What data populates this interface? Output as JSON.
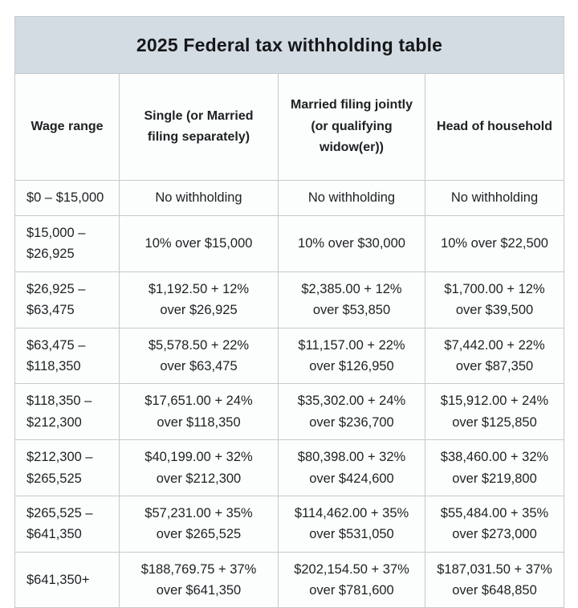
{
  "title": "2025 Federal tax withholding table",
  "colors": {
    "title_band": "#d4dce3",
    "cell_background": "#fcfdfd",
    "border": "#c3cacf",
    "text": "#1e2023"
  },
  "table": {
    "headers": [
      [
        "Wage range"
      ],
      [
        "Single (or Married",
        "filing separately)"
      ],
      [
        "Married filing jointly",
        "(or qualifying",
        "widow(er))"
      ],
      [
        "Head of household"
      ]
    ],
    "rows": [
      [
        [
          "$0 – $15,000"
        ],
        [
          "No withholding"
        ],
        [
          "No withholding"
        ],
        [
          "No withholding"
        ]
      ],
      [
        [
          "$15,000 –",
          "$26,925"
        ],
        [
          "10% over $15,000"
        ],
        [
          "10% over $30,000"
        ],
        [
          "10% over $22,500"
        ]
      ],
      [
        [
          "$26,925 –",
          "$63,475"
        ],
        [
          "$1,192.50 + 12%",
          "over $26,925"
        ],
        [
          "$2,385.00 + 12%",
          "over $53,850"
        ],
        [
          "$1,700.00 + 12%",
          "over $39,500"
        ]
      ],
      [
        [
          "$63,475 –",
          "$118,350"
        ],
        [
          "$5,578.50 + 22%",
          "over $63,475"
        ],
        [
          "$11,157.00 + 22%",
          "over $126,950"
        ],
        [
          "$7,442.00 + 22%",
          "over $87,350"
        ]
      ],
      [
        [
          "$118,350 –",
          "$212,300"
        ],
        [
          "$17,651.00 + 24%",
          "over $118,350"
        ],
        [
          "$35,302.00 + 24%",
          "over $236,700"
        ],
        [
          "$15,912.00 + 24%",
          "over $125,850"
        ]
      ],
      [
        [
          "$212,300 –",
          "$265,525"
        ],
        [
          "$40,199.00 + 32%",
          "over $212,300"
        ],
        [
          "$80,398.00 + 32%",
          "over $424,600"
        ],
        [
          "$38,460.00 + 32%",
          "over $219,800"
        ]
      ],
      [
        [
          "$265,525 –",
          "$641,350"
        ],
        [
          "$57,231.00 + 35%",
          "over $265,525"
        ],
        [
          "$114,462.00 + 35%",
          "over $531,050"
        ],
        [
          "$55,484.00 + 35%",
          "over $273,000"
        ]
      ],
      [
        [
          "$641,350+"
        ],
        [
          "$188,769.75 + 37%",
          "over $641,350"
        ],
        [
          "$202,154.50 + 37%",
          "over $781,600"
        ],
        [
          "$187,031.50 + 37%",
          "over $648,850"
        ]
      ]
    ]
  }
}
